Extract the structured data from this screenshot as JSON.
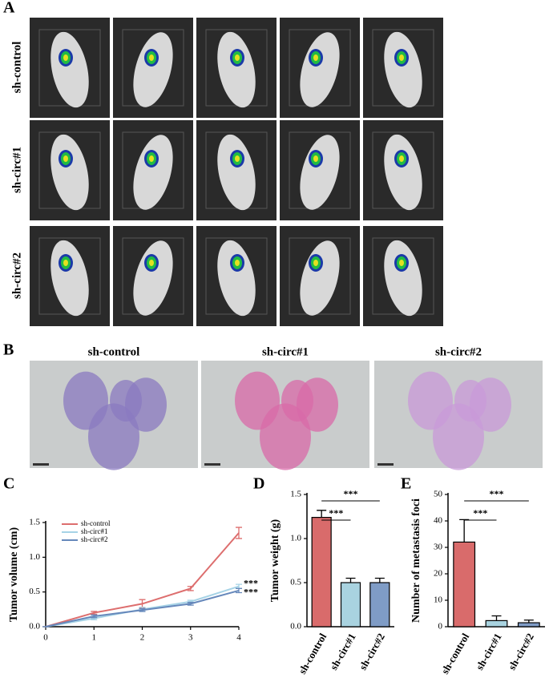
{
  "panels": {
    "A": {
      "label": "A",
      "rows": [
        "sh-control",
        "sh-circ#1",
        "sh-circ#2"
      ]
    },
    "B": {
      "label": "B",
      "columns": [
        "sh-control",
        "sh-circ#1",
        "sh-circ#2"
      ]
    }
  },
  "chart_data": [
    {
      "type": "line",
      "label": "C",
      "ylabel": "Tumor volume (cm)",
      "x": [
        0,
        1,
        2,
        3,
        4
      ],
      "xlim": [
        0,
        4
      ],
      "xticks": [
        0,
        1,
        2,
        3,
        4
      ],
      "ylim": [
        0,
        1.5
      ],
      "yticks": [
        {
          "value": 0,
          "label": "0.0"
        },
        0.5,
        {
          "value": 1,
          "label": "1.0"
        },
        1.5
      ],
      "legend": "upper left",
      "series": [
        {
          "name": "sh-control",
          "color": "#dd6e6e",
          "values": [
            0,
            0.2,
            0.33,
            0.55,
            1.35
          ],
          "errors": [
            0,
            0.02,
            0.06,
            0.03,
            0.08
          ]
        },
        {
          "name": "sh-circ#1",
          "color": "#a6d3e6",
          "values": [
            0,
            0.12,
            0.25,
            0.36,
            0.58
          ],
          "errors": [
            0,
            0.02,
            0.03,
            0.02,
            0.03
          ]
        },
        {
          "name": "sh-circ#2",
          "color": "#6688bb",
          "values": [
            0,
            0.15,
            0.24,
            0.33,
            0.52
          ],
          "errors": [
            0,
            0.02,
            0.02,
            0.02,
            0.03
          ]
        }
      ],
      "annotations": [
        "***",
        "***"
      ]
    },
    {
      "type": "bar",
      "label": "D",
      "ylabel": "Tumor weight (g)",
      "categories": [
        "sh-control",
        "sh-circ#1",
        "sh-circ#2"
      ],
      "values": [
        1.24,
        0.5,
        0.5
      ],
      "errors": [
        0.08,
        0.05,
        0.05
      ],
      "colors": [
        "#d96b6b",
        "#a9d3e0",
        "#7f9cc6"
      ],
      "ylim": [
        0,
        1.5
      ],
      "yticks": [
        {
          "value": 0,
          "label": "0.0"
        },
        0.5,
        {
          "value": 1,
          "label": "1.0"
        },
        1.5
      ],
      "annotations": [
        "***",
        "***"
      ]
    },
    {
      "type": "bar",
      "label": "E",
      "ylabel": "Number of metastasis foci",
      "categories": [
        "sh-control",
        "sh-circ#1",
        "sh-circ#2"
      ],
      "values": [
        32,
        2.3,
        1.5
      ],
      "errors": [
        8.5,
        1.8,
        1.0
      ],
      "colors": [
        "#d96b6b",
        "#a9d3e0",
        "#7f9cc6"
      ],
      "ylim": [
        0,
        50
      ],
      "yticks": [
        0,
        10,
        20,
        30,
        40,
        50
      ],
      "annotations": [
        "***",
        "***"
      ]
    }
  ]
}
